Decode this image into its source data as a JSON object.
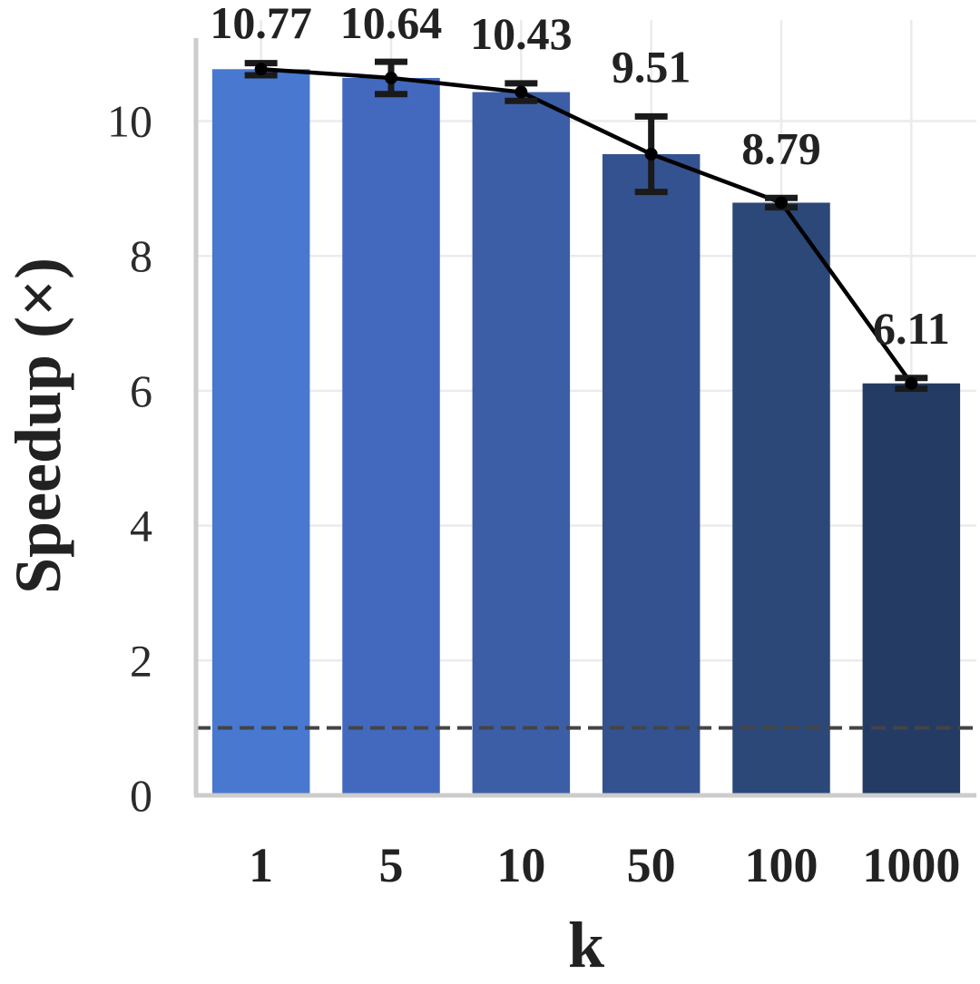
{
  "chart_data": {
    "type": "bar",
    "title": "",
    "xlabel": "k",
    "ylabel": "Speedup (×)",
    "categories": [
      "1",
      "5",
      "10",
      "50",
      "100",
      "1000"
    ],
    "values": [
      10.77,
      10.64,
      10.43,
      9.51,
      8.79,
      6.11
    ],
    "value_labels": [
      "10.77",
      "10.64",
      "10.43",
      "9.51",
      "8.79",
      "6.11"
    ],
    "error_low": [
      10.68,
      10.4,
      10.3,
      8.95,
      8.72,
      6.03
    ],
    "error_high": [
      10.86,
      10.88,
      10.56,
      10.07,
      8.86,
      6.19
    ],
    "line_overlay": [
      10.77,
      10.64,
      10.43,
      9.51,
      8.79,
      6.11
    ],
    "reference_line": 1.0,
    "ylim": [
      0,
      11.5
    ],
    "yticks": [
      "0",
      "2",
      "4",
      "6",
      "8",
      "10"
    ],
    "grid": true,
    "colors": [
      "#4878d0",
      "#4369be",
      "#3c5ea6",
      "#34528f",
      "#2c4879",
      "#243b64"
    ],
    "line_color": "#000000",
    "reference_color": "#444444"
  }
}
